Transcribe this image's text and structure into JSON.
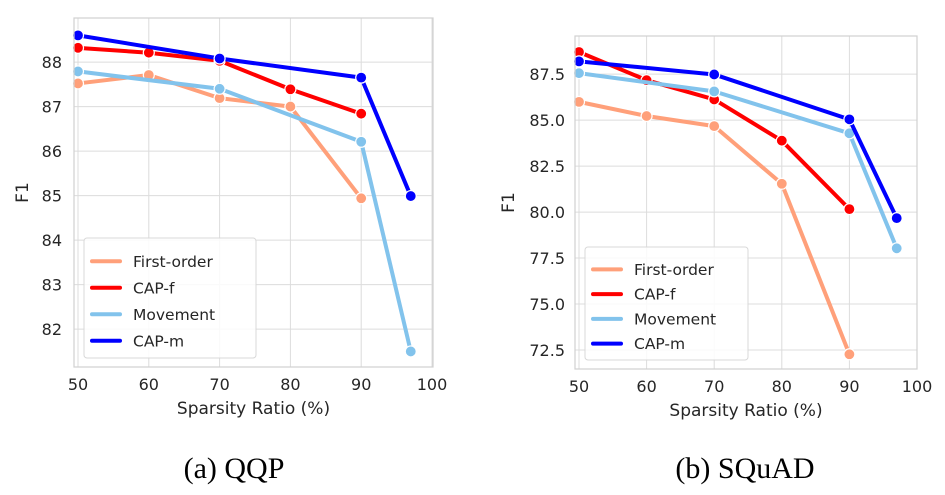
{
  "chart_data": [
    {
      "type": "line",
      "caption": "(a) QQP",
      "title": "",
      "xlabel": "Sparsity Ratio (%)",
      "ylabel": "F1",
      "xlim": [
        50,
        100
      ],
      "ylim": [
        81.15,
        88.99
      ],
      "xticks": [
        "50",
        "60",
        "70",
        "80",
        "90",
        "100"
      ],
      "yticks": [
        "82",
        "83",
        "84",
        "85",
        "86",
        "87",
        "88"
      ],
      "grid": true,
      "legend_position": "lower-left",
      "series": [
        {
          "name": "First-order",
          "color": "#FFA07A",
          "x": [
            50,
            60,
            70,
            80,
            90
          ],
          "y": [
            87.52,
            87.71,
            87.19,
            87.0,
            84.94
          ]
        },
        {
          "name": "CAP-f",
          "color": "#FF0000",
          "x": [
            50,
            60,
            70,
            80,
            90
          ],
          "y": [
            88.32,
            88.21,
            88.03,
            87.39,
            86.84
          ]
        },
        {
          "name": "Movement",
          "color": "#82C3EC",
          "x": [
            50,
            70,
            90,
            97
          ],
          "y": [
            87.79,
            87.4,
            86.21,
            81.5
          ]
        },
        {
          "name": "CAP-m",
          "color": "#0000FF",
          "x": [
            50,
            70,
            90,
            97
          ],
          "y": [
            88.6,
            88.08,
            87.65,
            84.99
          ]
        }
      ]
    },
    {
      "type": "line",
      "caption": "(b) SQuAD",
      "title": "",
      "xlabel": "Sparsity Ratio (%)",
      "ylabel": "F1",
      "xlim": [
        50,
        100
      ],
      "ylim": [
        71.47,
        89.57
      ],
      "xticks": [
        "50",
        "60",
        "70",
        "80",
        "90",
        "100"
      ],
      "yticks": [
        "72.5",
        "75.0",
        "77.5",
        "80.0",
        "82.5",
        "85.0",
        "87.5"
      ],
      "grid": true,
      "legend_position": "lower-left",
      "series": [
        {
          "name": "First-order",
          "color": "#FFA07A",
          "x": [
            50,
            60,
            70,
            80,
            90
          ],
          "y": [
            85.99,
            85.22,
            84.67,
            81.54,
            72.27
          ]
        },
        {
          "name": "CAP-f",
          "color": "#FF0000",
          "x": [
            50,
            60,
            70,
            80,
            90
          ],
          "y": [
            88.7,
            87.17,
            86.12,
            83.88,
            80.16
          ]
        },
        {
          "name": "Movement",
          "color": "#82C3EC",
          "x": [
            50,
            70,
            90,
            97
          ],
          "y": [
            87.55,
            86.56,
            84.28,
            78.03
          ]
        },
        {
          "name": "CAP-m",
          "color": "#0000FF",
          "x": [
            50,
            70,
            90,
            97
          ],
          "y": [
            88.19,
            87.48,
            85.04,
            79.67
          ]
        }
      ]
    }
  ]
}
